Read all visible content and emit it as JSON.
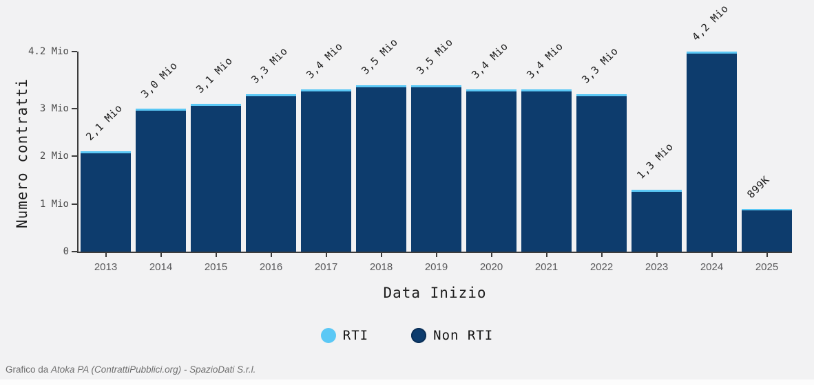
{
  "chart_data": {
    "type": "bar",
    "stacked": true,
    "title": "",
    "xlabel": "Data Inizio",
    "ylabel": "Numero contratti",
    "categories": [
      "2013",
      "2014",
      "2015",
      "2016",
      "2017",
      "2018",
      "2019",
      "2020",
      "2021",
      "2022",
      "2023",
      "2024",
      "2025"
    ],
    "series": [
      {
        "name": "RTI",
        "color": "#5bc8f5",
        "values": [
          0.04,
          0.04,
          0.04,
          0.04,
          0.04,
          0.04,
          0.04,
          0.04,
          0.04,
          0.04,
          0.04,
          0.04,
          0.02
        ]
      },
      {
        "name": "Non RTI",
        "color": "#0d3c6d",
        "values": [
          2.06,
          2.96,
          3.06,
          3.26,
          3.36,
          3.46,
          3.46,
          3.36,
          3.36,
          3.26,
          1.26,
          4.16,
          0.88
        ]
      }
    ],
    "totals_mio": [
      2.1,
      3.0,
      3.1,
      3.3,
      3.4,
      3.5,
      3.5,
      3.4,
      3.4,
      3.3,
      1.3,
      4.2,
      0.899
    ],
    "bar_labels": [
      "2,1 Mio",
      "3,0 Mio",
      "3,1 Mio",
      "3,3 Mio",
      "3,4 Mio",
      "3,5 Mio",
      "3,5 Mio",
      "3,4 Mio",
      "3,4 Mio",
      "3,3 Mio",
      "1,3 Mio",
      "4,2 Mio",
      "899K"
    ],
    "y_ticks": [
      {
        "v": 4.2,
        "label": "4.2 Mio"
      },
      {
        "v": 3,
        "label": "3 Mio"
      },
      {
        "v": 2,
        "label": "2 Mio"
      },
      {
        "v": 1,
        "label": "1 Mio"
      },
      {
        "v": 0,
        "label": "0"
      }
    ],
    "ylim": [
      0,
      4.2
    ],
    "unit": "Mio",
    "grid": false,
    "legend_position": "bottom"
  },
  "legend": {
    "items": [
      {
        "label": "RTI"
      },
      {
        "label": "Non RTI"
      }
    ]
  },
  "footer": {
    "prefix": "Grafico da ",
    "source": "Atoka PA (ContrattiPubblici.org) - SpazioDati S.r.l."
  },
  "colors": {
    "background": "#f2f2f3",
    "axis": "#3c3c3c",
    "bar_non_rti": "#0d3c6d",
    "bar_rti": "#5bc8f5",
    "tick_label": "#4a4a4a",
    "year_label": "#58585a",
    "value_label": "#1c1c1c",
    "footer_text": "#6e6e6e"
  }
}
